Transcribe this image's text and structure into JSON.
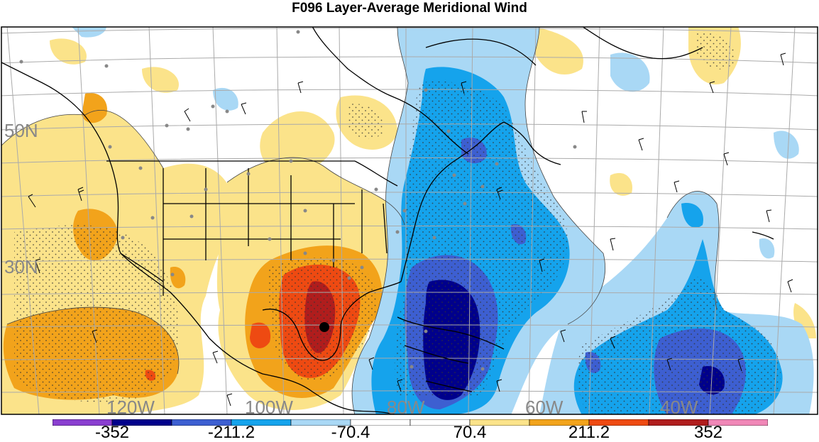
{
  "title": "F096 Layer-Average Meridional Wind",
  "map": {
    "lat_labels": [
      "50N",
      "30N"
    ],
    "lon_labels": [
      "120W",
      "100W",
      "80W",
      "60W",
      "40W"
    ],
    "marker": "storm-center-dot"
  },
  "colorbar": {
    "colors": [
      "#8a3fd0",
      "#00008b",
      "#3d5fd1",
      "#15a3ec",
      "#a9d8f5",
      "#ffffff",
      "#ffffff",
      "#fbe38a",
      "#f2a31b",
      "#ee4a12",
      "#b01d1d",
      "#f087b7"
    ],
    "labels": [
      "-352",
      "-211.2",
      "-70.4",
      "70.4",
      "211.2",
      "352"
    ]
  }
}
